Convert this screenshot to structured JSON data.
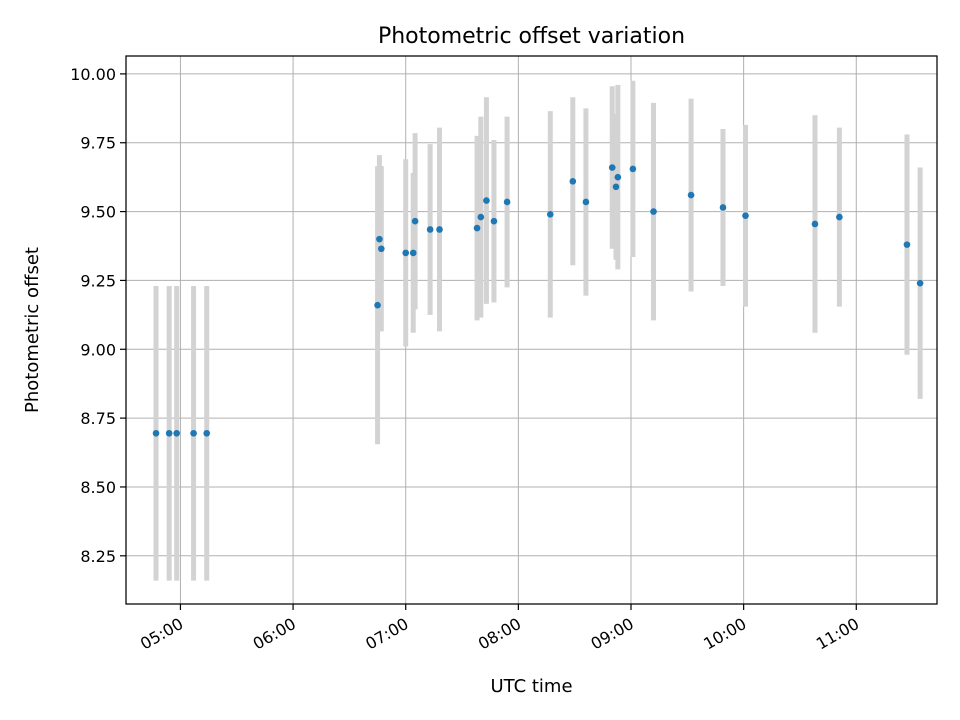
{
  "chart_data": {
    "type": "scatter",
    "title": "Photometric offset variation",
    "xlabel": "UTC time",
    "ylabel": "Photometric offset",
    "x_unit": "time of day (UTC)",
    "xlim": [
      "04:31",
      "11:43"
    ],
    "ylim": [
      8.075,
      10.065
    ],
    "grid": true,
    "x_ticks": [
      "05:00",
      "06:00",
      "07:00",
      "08:00",
      "09:00",
      "10:00",
      "11:00"
    ],
    "y_ticks": [
      "8.25",
      "8.50",
      "8.75",
      "9.00",
      "9.25",
      "9.50",
      "9.75",
      "10.00"
    ],
    "colors": {
      "marker": "#1f77b4",
      "errorbar": "#d3d3d3",
      "grid": "#b0b0b0"
    },
    "series": [
      {
        "points": [
          {
            "x": "04:47",
            "y": 8.695,
            "err": 0.535
          },
          {
            "x": "04:54",
            "y": 8.695,
            "err": 0.535
          },
          {
            "x": "04:58",
            "y": 8.695,
            "err": 0.535
          },
          {
            "x": "05:07",
            "y": 8.695,
            "err": 0.535
          },
          {
            "x": "05:14",
            "y": 8.695,
            "err": 0.535
          },
          {
            "x": "06:45",
            "y": 9.16,
            "err": 0.505
          },
          {
            "x": "06:46",
            "y": 9.4,
            "err": 0.305
          },
          {
            "x": "06:47",
            "y": 9.365,
            "err": 0.3
          },
          {
            "x": "07:00",
            "y": 9.35,
            "err": 0.34
          },
          {
            "x": "07:04",
            "y": 9.35,
            "err": 0.29
          },
          {
            "x": "07:05",
            "y": 9.465,
            "err": 0.32
          },
          {
            "x": "07:13",
            "y": 9.435,
            "err": 0.31
          },
          {
            "x": "07:18",
            "y": 9.435,
            "err": 0.37
          },
          {
            "x": "07:38",
            "y": 9.44,
            "err": 0.335
          },
          {
            "x": "07:40",
            "y": 9.48,
            "err": 0.365
          },
          {
            "x": "07:43",
            "y": 9.54,
            "err": 0.375
          },
          {
            "x": "07:47",
            "y": 9.465,
            "err": 0.295
          },
          {
            "x": "07:54",
            "y": 9.535,
            "err": 0.31
          },
          {
            "x": "08:17",
            "y": 9.49,
            "err": 0.375
          },
          {
            "x": "08:29",
            "y": 9.61,
            "err": 0.305
          },
          {
            "x": "08:36",
            "y": 9.535,
            "err": 0.34
          },
          {
            "x": "08:50",
            "y": 9.66,
            "err": 0.295
          },
          {
            "x": "08:52",
            "y": 9.59,
            "err": 0.265
          },
          {
            "x": "08:53",
            "y": 9.625,
            "err": 0.335
          },
          {
            "x": "09:01",
            "y": 9.655,
            "err": 0.32
          },
          {
            "x": "09:12",
            "y": 9.5,
            "err": 0.395
          },
          {
            "x": "09:32",
            "y": 9.56,
            "err": 0.35
          },
          {
            "x": "09:49",
            "y": 9.515,
            "err": 0.285
          },
          {
            "x": "10:01",
            "y": 9.485,
            "err": 0.33
          },
          {
            "x": "10:38",
            "y": 9.455,
            "err": 0.395
          },
          {
            "x": "10:51",
            "y": 9.48,
            "err": 0.325
          },
          {
            "x": "11:27",
            "y": 9.38,
            "err": 0.4
          },
          {
            "x": "11:34",
            "y": 9.24,
            "err": 0.42
          }
        ]
      }
    ]
  }
}
